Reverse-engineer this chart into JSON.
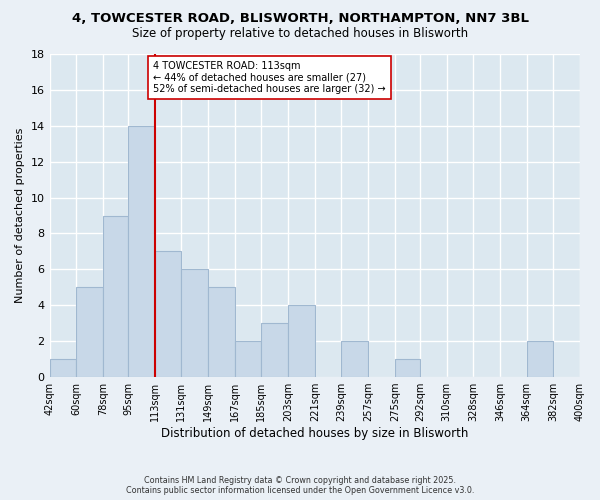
{
  "title_line1": "4, TOWCESTER ROAD, BLISWORTH, NORTHAMPTON, NN7 3BL",
  "title_line2": "Size of property relative to detached houses in Blisworth",
  "xlabel": "Distribution of detached houses by size in Blisworth",
  "ylabel": "Number of detached properties",
  "bins": [
    42,
    60,
    78,
    95,
    113,
    131,
    149,
    167,
    185,
    203,
    221,
    239,
    257,
    275,
    292,
    310,
    328,
    346,
    364,
    382,
    400
  ],
  "bin_labels": [
    "42sqm",
    "60sqm",
    "78sqm",
    "95sqm",
    "113sqm",
    "131sqm",
    "149sqm",
    "167sqm",
    "185sqm",
    "203sqm",
    "221sqm",
    "239sqm",
    "257sqm",
    "275sqm",
    "292sqm",
    "310sqm",
    "328sqm",
    "346sqm",
    "364sqm",
    "382sqm",
    "400sqm"
  ],
  "counts": [
    1,
    5,
    9,
    14,
    7,
    6,
    5,
    2,
    3,
    4,
    0,
    2,
    0,
    1,
    0,
    0,
    0,
    0,
    2,
    0
  ],
  "bar_color": "#c8d8e8",
  "bar_edge_color": "#a0b8d0",
  "vline_x": 113,
  "vline_color": "#cc0000",
  "annotation_text": "4 TOWCESTER ROAD: 113sqm\n← 44% of detached houses are smaller (27)\n52% of semi-detached houses are larger (32) →",
  "annotation_box_color": "#ffffff",
  "annotation_box_edge": "#cc0000",
  "ylim": [
    0,
    18
  ],
  "yticks": [
    0,
    2,
    4,
    6,
    8,
    10,
    12,
    14,
    16,
    18
  ],
  "bg_color": "#dce8f0",
  "grid_color": "#ffffff",
  "fig_bg_color": "#eaf0f6",
  "footer_line1": "Contains HM Land Registry data © Crown copyright and database right 2025.",
  "footer_line2": "Contains public sector information licensed under the Open Government Licence v3.0."
}
